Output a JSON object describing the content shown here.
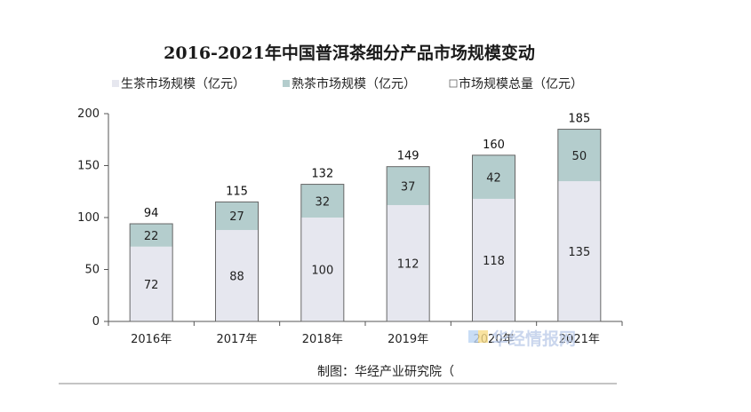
{
  "chart_data": {
    "type": "bar",
    "stacked": true,
    "title": "2016-2021年中国普洱茶细分产品市场规模变动",
    "categories": [
      "2016年",
      "2017年",
      "2018年",
      "2019年",
      "2020年",
      "2021年"
    ],
    "series": [
      {
        "name": "生茶市场规模（亿元）",
        "values": [
          72,
          88,
          100,
          112,
          118,
          135
        ],
        "color": "#e6e7ef"
      },
      {
        "name": "熟茶市场规模（亿元）",
        "values": [
          22,
          27,
          32,
          37,
          42,
          50
        ],
        "color": "#b4cdcd"
      }
    ],
    "totals": {
      "name": "市场规模总量（亿元）",
      "values": [
        94,
        115,
        132,
        149,
        160,
        185
      ]
    },
    "yticks": [
      0,
      50,
      100,
      150,
      200
    ],
    "ylim": [
      0,
      200
    ],
    "legend_position": "top",
    "grid": false
  },
  "source": "制图：华经产业研究院（",
  "watermark": "华经情报网",
  "colors": {
    "bar_outline": "#666666",
    "axis": "#555555",
    "text": "#222222"
  }
}
